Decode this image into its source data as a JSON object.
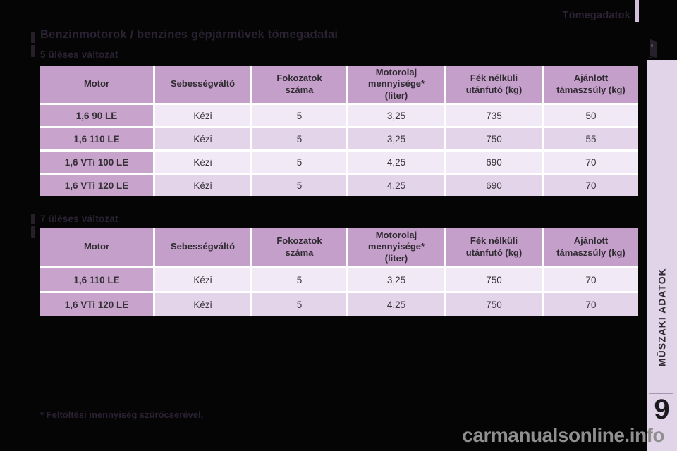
{
  "page": {
    "breadcrumb": "Tömegadatok",
    "title": "Benzinmotorok / benzines gépjárművek tömegadatai",
    "footnote": "* Feltöltési mennyiség szűrőcserével.",
    "watermark": "carmanualsonline.info"
  },
  "sidebar": {
    "label": "MŰSZAKI ADATOK",
    "chapter": "9"
  },
  "table_headers": [
    "Motor",
    "Sebességváltó",
    "Fokozatok\nszáma",
    "Motorolaj\nmennyisége*\n(liter)",
    "Fék nélküli\nutánfutó (kg)",
    "Ajánlott\ntámaszsúly (kg)"
  ],
  "sections": [
    {
      "title": "5 üléses változat",
      "rows": [
        [
          "1,6 90 LE",
          "Kézi",
          "5",
          "3,25",
          "735",
          "50"
        ],
        [
          "1,6 110 LE",
          "Kézi",
          "5",
          "3,25",
          "750",
          "55"
        ],
        [
          "1,6 VTi 100 LE",
          "Kézi",
          "5",
          "4,25",
          "690",
          "70"
        ],
        [
          "1,6 VTi 120 LE",
          "Kézi",
          "5",
          "4,25",
          "690",
          "70"
        ]
      ]
    },
    {
      "title": "7 üléses változat",
      "rows": [
        [
          "1,6 110 LE",
          "Kézi",
          "5",
          "3,25",
          "750",
          "70"
        ],
        [
          "1,6 VTi 120 LE",
          "Kézi",
          "5",
          "4,25",
          "750",
          "70"
        ]
      ]
    }
  ],
  "colors": {
    "header_bg": "#c49fc9",
    "label_bg": "#c8a3cc",
    "row_light": "#f1e9f5",
    "row_dark": "#e3d4e9",
    "accent_bar": "#d3bfdd",
    "sidebar_bg": "#e2d4e8"
  }
}
